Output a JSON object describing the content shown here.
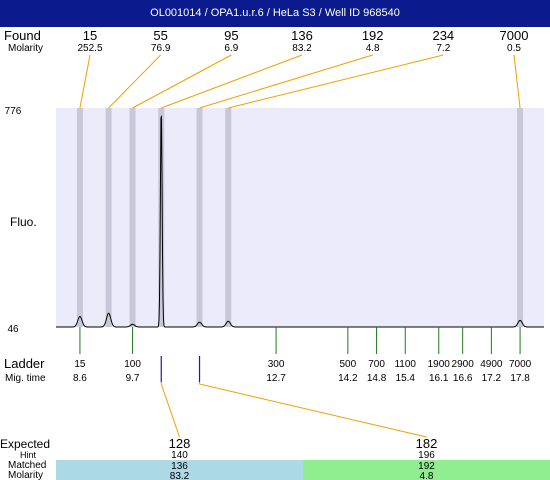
{
  "title": "OL001014 / OPA1.u.r.6 / HeLa S3 / Well ID 968540",
  "colors": {
    "title_bg": "#0b1a8c",
    "plot_bg": "#ebebfa",
    "marker_band": "#c8c8d8",
    "callout": "#f0a000",
    "ladder_tick": "#1e7a1e",
    "peak_tick": "#1a1ab0",
    "matched_136_bg": "#add8e6",
    "matched_192_bg": "#90ee90"
  },
  "labels": {
    "found": "Found",
    "molarity": "Molarity",
    "fluo": "Fluo.",
    "ladder": "Ladder",
    "mig_time": "Mig. time",
    "expected": "Expected",
    "hint": "Hint",
    "matched": "Matched",
    "molarity_bottom": "Molarity"
  },
  "chart_data": {
    "type": "line",
    "title": "OL001014 / OPA1.u.r.6 / HeLa S3 / Well ID 968540",
    "ylabel": "Fluo.",
    "ylim": [
      46,
      776
    ],
    "xlim_mig_time": [
      8.1,
      18.3
    ],
    "y_ticks": [
      "776",
      "46"
    ],
    "found_peaks": [
      {
        "size": "15",
        "molarity": "252.5",
        "mig_time": 8.6,
        "height": 81
      },
      {
        "size": "55",
        "molarity": "76.9",
        "mig_time": 9.2,
        "height": 92
      },
      {
        "size": "95",
        "molarity": "6.9",
        "mig_time": 9.7,
        "height": 55
      },
      {
        "size": "136",
        "molarity": "83.2",
        "mig_time": 10.3,
        "height": 776
      },
      {
        "size": "192",
        "molarity": "4.8",
        "mig_time": 11.1,
        "height": 62
      },
      {
        "size": "234",
        "molarity": "7.2",
        "mig_time": 11.7,
        "height": 65
      },
      {
        "size": "7000",
        "molarity": "0.5",
        "mig_time": 17.8,
        "height": 68
      }
    ],
    "ladder": [
      {
        "size": "15",
        "mig_time": "8.6",
        "t": 8.6
      },
      {
        "size": "100",
        "mig_time": "9.7",
        "t": 9.7
      },
      {
        "size": "300",
        "mig_time": "12.7",
        "t": 12.7
      },
      {
        "size": "500",
        "mig_time": "14.2",
        "t": 14.2
      },
      {
        "size": "700",
        "mig_time": "14.8",
        "t": 14.8
      },
      {
        "size": "1100",
        "mig_time": "15.4",
        "t": 15.4
      },
      {
        "size": "1900",
        "mig_time": "16.1",
        "t": 16.1
      },
      {
        "size": "2900",
        "mig_time": "16.6",
        "t": 16.6
      },
      {
        "size": "4900",
        "mig_time": "17.2",
        "t": 17.2
      },
      {
        "size": "7000",
        "mig_time": "17.8",
        "t": 17.8
      }
    ],
    "expected": [
      {
        "expected": "128",
        "hint": "140",
        "matched": "136",
        "molarity": "83.2",
        "matched_mig_time": 10.3
      },
      {
        "expected": "182",
        "hint": "196",
        "matched": "192",
        "molarity": "4.8",
        "matched_mig_time": 11.1
      }
    ]
  }
}
